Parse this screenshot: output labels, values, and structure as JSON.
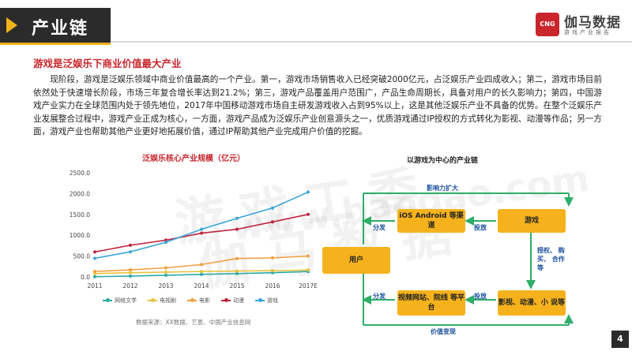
{
  "header": {
    "title": "产业链",
    "logo_name": "伽马数据",
    "logo_badge": "CNG",
    "logo_tagline": "游戏产业报告"
  },
  "section": {
    "heading": "游戏是泛娱乐下商业价值最大产业",
    "paragraph": "现阶段，游戏是泛娱乐领域中商业价值最高的一个产业。第一，游戏市场销售收入已经突破2000亿元，占泛娱乐产业四成收入；第二，游戏市场目前依然处于快速增长阶段，市场三年复合增长率达到21.2%；第三，游戏产品覆盖用户范围广，产品生命周期长，具备对用户的长久影响力；第四，中国游戏产业实力在全球范围内处于领先地位，2017年中国移动游戏市场自主研发游戏收入占到95%以上，这是其他泛娱乐产业不具备的优势。在整个泛娱乐产业发展整合过程中，游戏产业正成为核心，一方面，游戏产品成为泛娱乐产业创意源头之一，优质游戏通过IP授权的方式转化为影视、动漫等作品；另一方面，游戏产业也帮助其他产业更好地拓展价值，通过IP帮助其他产业完成用户价值的挖掘。"
  },
  "watermark": {
    "line1": "游戏工委",
    "line2": "伽马数据",
    "line3": "www.baogao.com"
  },
  "chart_data": {
    "type": "line",
    "title": "泛娱乐核心产业规模（亿元）",
    "categories": [
      "2011",
      "2012",
      "2013",
      "2014",
      "2015",
      "2016",
      "2017E"
    ],
    "yticks": [
      "0.0",
      "500.0",
      "1000.0",
      "1500.0",
      "2000.0",
      "2500.0"
    ],
    "ylim": [
      0,
      2500
    ],
    "series": [
      {
        "name": "网络文学",
        "color": "#2aa9a4",
        "values": [
          5,
          20,
          40,
          60,
          80,
          100,
          130
        ]
      },
      {
        "name": "电视剧",
        "color": "#e8c33a",
        "values": [
          80,
          100,
          115,
          130,
          140,
          150,
          165
        ]
      },
      {
        "name": "电影",
        "color": "#f0a040",
        "values": [
          130,
          170,
          218,
          296,
          441,
          457,
          500
        ]
      },
      {
        "name": "动漫",
        "color": "#c0233f",
        "values": [
          600,
          760,
          882,
          1050,
          1144,
          1320,
          1500
        ]
      },
      {
        "name": "游戏",
        "color": "#3aa6d8",
        "values": [
          446,
          602,
          832,
          1144,
          1407,
          1655,
          2036
        ]
      }
    ],
    "source": "数据来源：XX数据、艺恩、中国产业信息网"
  },
  "diagram": {
    "title": "以游戏为中心的产业链",
    "nodes": {
      "os": "iOS Android 等渠道",
      "game": "游戏",
      "user": "用户",
      "video": "视频网站、院线 等平台",
      "media": "影视、动漫、小 说等"
    },
    "labels": {
      "influence": "影响力扩大",
      "distribute_top": "分发",
      "deliver_top": "投放",
      "license": "授权、 购买、 合作等",
      "distribute_bottom": "分发",
      "deliver_bottom": "投放",
      "value": "价值变现"
    }
  },
  "page": {
    "number": "4"
  }
}
